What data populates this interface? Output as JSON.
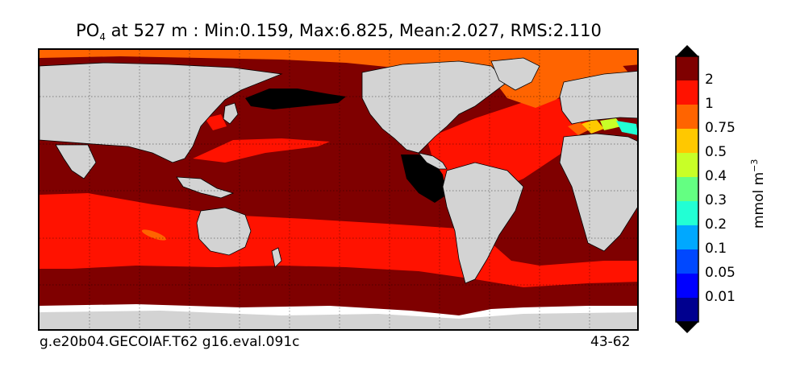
{
  "title": {
    "species_main": "PO",
    "species_sub": "4",
    "rest": " at 527 m : Min:0.159, Max:6.825, Mean:2.027, RMS:2.110"
  },
  "footer": {
    "case": "g.e20b04.GECOIAF.T62 g16.eval.091c",
    "years": "43-62"
  },
  "colorbar": {
    "unit_main": "mmol m",
    "unit_sup": "−3",
    "levels": [
      "2",
      "1",
      "0.75",
      "0.5",
      "0.4",
      "0.3",
      "0.2",
      "0.1",
      "0.05",
      "0.01"
    ],
    "colors": [
      "#7f0000",
      "#ff1200",
      "#ff6400",
      "#ffc800",
      "#c8ff27",
      "#64ff82",
      "#22ffd4",
      "#00a8ff",
      "#0048ff",
      "#0000ff",
      "#00008f"
    ],
    "over_color": "#000000",
    "under_color": "#000000"
  },
  "map_colors": {
    "land": "#d3d3d3",
    "no_data": "#ffffff",
    "above_max": "#000000"
  }
}
